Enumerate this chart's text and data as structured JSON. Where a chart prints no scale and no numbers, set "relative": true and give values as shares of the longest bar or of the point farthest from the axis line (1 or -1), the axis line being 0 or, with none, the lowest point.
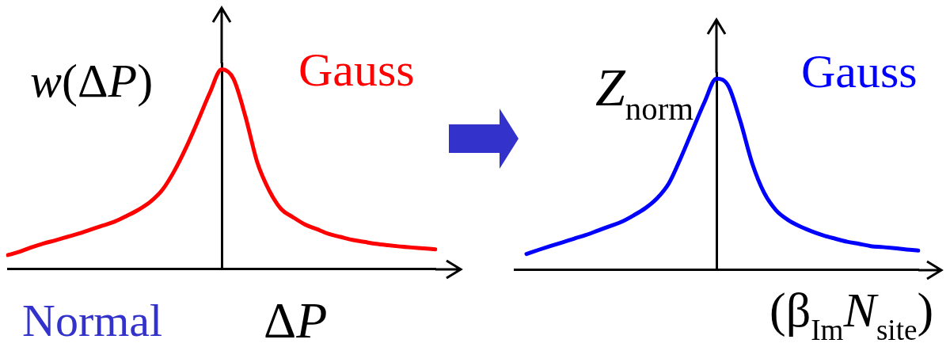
{
  "chart_data": [
    {
      "type": "line",
      "relative": true,
      "ylabel": "w(ΔP)",
      "xlabel": "ΔP",
      "marker": "none",
      "categories": [
        null,
        null,
        null,
        null,
        null,
        null,
        null,
        null,
        null,
        null,
        null,
        null,
        null,
        null,
        null,
        null,
        null,
        null,
        null,
        null,
        null,
        null,
        null,
        null,
        null,
        null,
        null,
        null,
        null,
        null,
        null,
        null,
        null,
        null,
        null,
        null,
        null
      ],
      "series": [
        {
          "name": "Gauss",
          "color": "#ff0000",
          "values": [
            0.07,
            0.087,
            0.109,
            0.128,
            0.144,
            0.161,
            0.178,
            0.198,
            0.218,
            0.238,
            0.266,
            0.297,
            0.337,
            0.396,
            0.49,
            0.608,
            0.742,
            0.882,
            1,
            0.952,
            0.764,
            0.534,
            0.394,
            0.301,
            0.26,
            0.224,
            0.2,
            0.176,
            0.161,
            0.146,
            0.136,
            0.126,
            0.119,
            0.113,
            0.108,
            0.104,
            0.099
          ]
        }
      ],
      "annotations": [
        "Normal"
      ]
    },
    {
      "type": "line",
      "relative": true,
      "ylabel": "Z$_{norm}$",
      "xlabel": "(β$_{Im}$N$_{site}$)",
      "marker": "none",
      "categories": [
        null,
        null,
        null,
        null,
        null,
        null,
        null,
        null,
        null,
        null,
        null,
        null,
        null,
        null,
        null,
        null,
        null,
        null,
        null,
        null,
        null,
        null,
        null,
        null,
        null,
        null,
        null,
        null,
        null,
        null,
        null,
        null,
        null,
        null,
        null
      ],
      "series": [
        {
          "name": "Gauss",
          "color": "#0000ff",
          "values": [
            null,
            0.083,
            0.104,
            0.124,
            0.143,
            0.163,
            0.182,
            0.205,
            0.228,
            0.251,
            0.284,
            0.322,
            0.374,
            0.453,
            0.586,
            0.733,
            0.878,
            1,
            0.962,
            0.78,
            0.559,
            0.405,
            0.313,
            0.262,
            0.228,
            0.202,
            0.18,
            0.163,
            0.147,
            0.136,
            0.124,
            0.119,
            0.113,
            0.106,
            0.101
          ]
        }
      ]
    }
  ]
}
